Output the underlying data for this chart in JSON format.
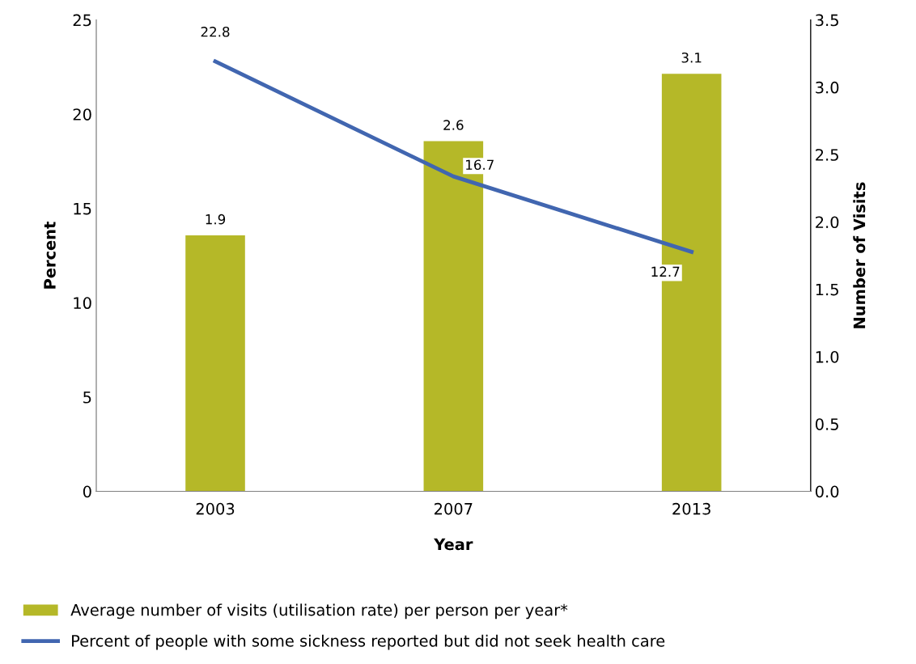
{
  "chart_data": {
    "type": "bar",
    "xlabel": "Year",
    "ylabel": "Percent",
    "y2label": "Number of Visits",
    "categories": [
      "2003",
      "2007",
      "2013"
    ],
    "series": [
      {
        "name": "Average number of visits (utilisation rate) per person per year*",
        "type": "bar",
        "axis": "y2",
        "color": "#b5b828",
        "values": [
          1.9,
          2.6,
          3.1
        ]
      },
      {
        "name": "Percent of people with some sickness reported but did not seek health care",
        "type": "line",
        "axis": "y",
        "color": "#4166b0",
        "values": [
          22.8,
          16.7,
          12.7
        ]
      }
    ],
    "ylim": [
      0,
      25
    ],
    "yticks": [
      0,
      5,
      10,
      15,
      20,
      25
    ],
    "y2lim": [
      0,
      3.5
    ],
    "y2ticks": [
      {
        "value": 0,
        "label": "0.0"
      },
      {
        "value": 0.5,
        "label": "0.5"
      },
      {
        "value": 1,
        "label": "1.0"
      },
      {
        "value": 1.5,
        "label": "1.5"
      },
      {
        "value": 2,
        "label": "2.0"
      },
      {
        "value": 2.5,
        "label": "2.5"
      },
      {
        "value": 3,
        "label": "3.0"
      },
      {
        "value": 3.5,
        "label": "3.5"
      }
    ],
    "data_labels": true,
    "grid": false,
    "legend": "bottom",
    "marker": "none"
  }
}
